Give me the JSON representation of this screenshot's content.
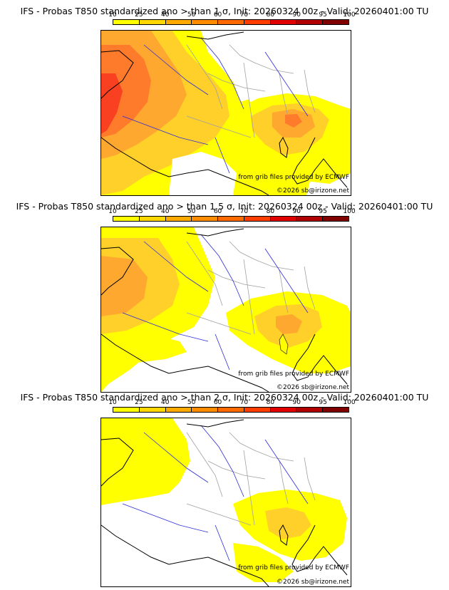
{
  "panels": [
    {
      "title": "IFS - Probas T850  standardized ano > than 1 σ, Init: 20260324 00z - Valid: 20260401:00 TU",
      "threshold": "1 sigma"
    },
    {
      "title": "IFS - Probas T850  standardized ano > than 1.5 σ, Init: 20260324 00z - Valid: 20260401:00 TU",
      "threshold": "1.5 sigma"
    },
    {
      "title": "IFS - Probas T850  standardized ano > than 2 σ, Init: 20260324 00z - Valid: 20260401:00 TU",
      "threshold": "2 sigma"
    }
  ],
  "scale": {
    "ticks": [
      "10",
      "25",
      "40",
      "50",
      "60",
      "70",
      "80",
      "90",
      "95",
      "100"
    ],
    "colors": [
      "#ffff00",
      "#ffd700",
      "#ffaa00",
      "#ff8c00",
      "#ff6a00",
      "#ff3d00",
      "#e00000",
      "#b00000",
      "#800000"
    ]
  },
  "map_colors": {
    "level1": "#ffff00",
    "level2": "#ffd02a",
    "level3": "#ffa830",
    "level4": "#ff7b2c",
    "level5": "#f94020",
    "coast": "#000000",
    "river": "#2a2add",
    "border": "#a0a0a0"
  },
  "credits": {
    "grib": "from grib files provided by ECMWF",
    "copyright": "©2026 sb@irizone.net"
  }
}
